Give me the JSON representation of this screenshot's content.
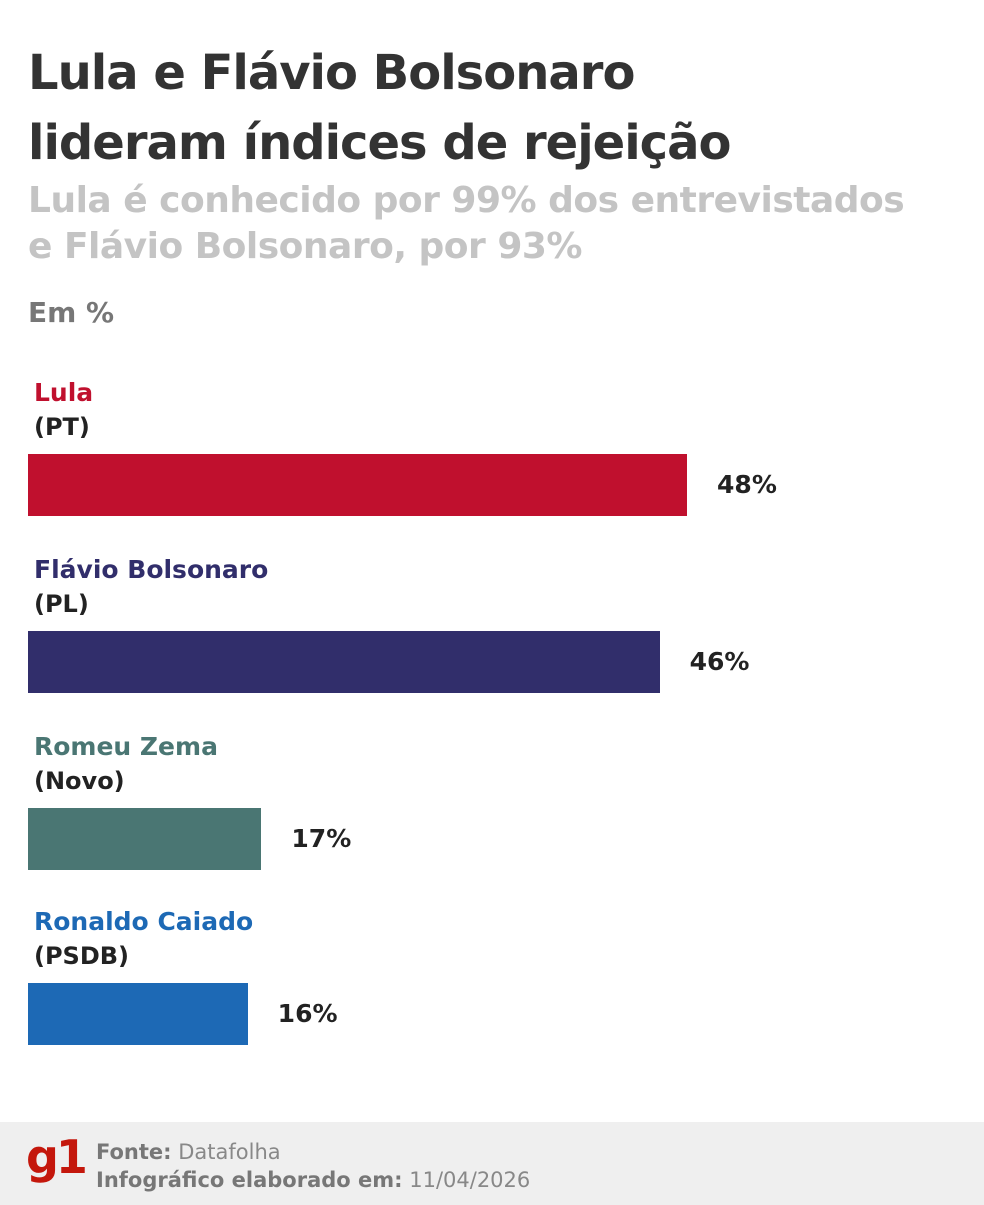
{
  "chart_data": {
    "type": "bar",
    "orientation": "horizontal",
    "title": "Lula e Flávio Bolsonaro lideram índices de rejeição",
    "title_lines": [
      "Lula e Flávio Bolsonaro",
      "lideram índices de rejeição"
    ],
    "subtitle_lines": [
      "Lula é conhecido por 99% dos entrevistados",
      "e Flávio Bolsonaro, por 93%"
    ],
    "unit_label": "Em %",
    "categories": [
      "Lula",
      "Flávio Bolsonaro",
      "Romeu Zema",
      "Ronaldo Caiado"
    ],
    "parties": [
      "(PT)",
      "(PL)",
      "(Novo)",
      "(PSDB)"
    ],
    "values": [
      48,
      46,
      17,
      16
    ],
    "value_labels": [
      "48%",
      "46%",
      "17%",
      "16%"
    ],
    "colors": [
      "#c0102e",
      "#312e6b",
      "#4a7673",
      "#1d69b5"
    ],
    "grid": false
  },
  "footer": {
    "logo": "g1",
    "source_label": "Fonte:",
    "source_value": "Datafolha",
    "date_label": "Infográfico elaborado em:",
    "date_value": "11/04/2026"
  }
}
